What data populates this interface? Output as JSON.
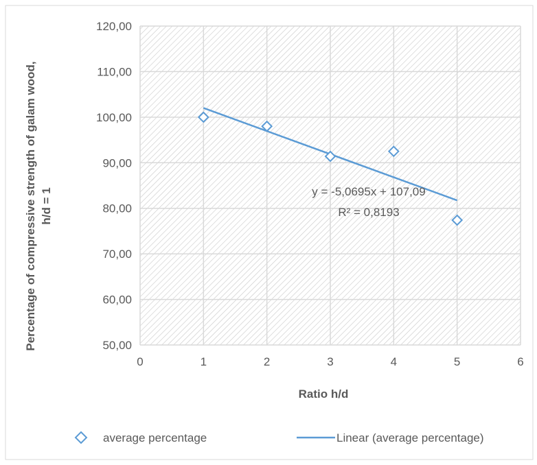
{
  "colors": {
    "series": "#5B9BD5",
    "grid": "#d9d9d9",
    "hatch": "#c8c8c8",
    "text": "#595959"
  },
  "chart_data": {
    "type": "scatter",
    "xlabel": "Ratio h/d",
    "ylabel_line1": "Percentage of compressive strength of galam wood,",
    "ylabel_line2": "h/d = 1",
    "xlim": [
      0,
      6
    ],
    "ylim": [
      50,
      120
    ],
    "x_ticks": [
      "0",
      "1",
      "2",
      "3",
      "4",
      "5",
      "6"
    ],
    "y_ticks": [
      "50,00",
      "60,00",
      "70,00",
      "80,00",
      "90,00",
      "100,00",
      "110,00",
      "120,00"
    ],
    "x_tick_values": [
      0,
      1,
      2,
      3,
      4,
      5,
      6
    ],
    "y_tick_values": [
      50,
      60,
      70,
      80,
      90,
      100,
      110,
      120
    ],
    "grid": true,
    "series": [
      {
        "name": "average percentage",
        "x": [
          1,
          2,
          3,
          4,
          5
        ],
        "y": [
          100.0,
          98.0,
          91.4,
          92.5,
          77.4
        ],
        "marker": "diamond-open"
      }
    ],
    "trendline": {
      "name": "Linear (average percentage)",
      "slope": -5.0695,
      "intercept": 107.09,
      "x_range": [
        1,
        5
      ],
      "equation": "y = -5,0695x + 107,09",
      "r_squared": "R² = 0,8193"
    },
    "legend_position": "bottom"
  }
}
